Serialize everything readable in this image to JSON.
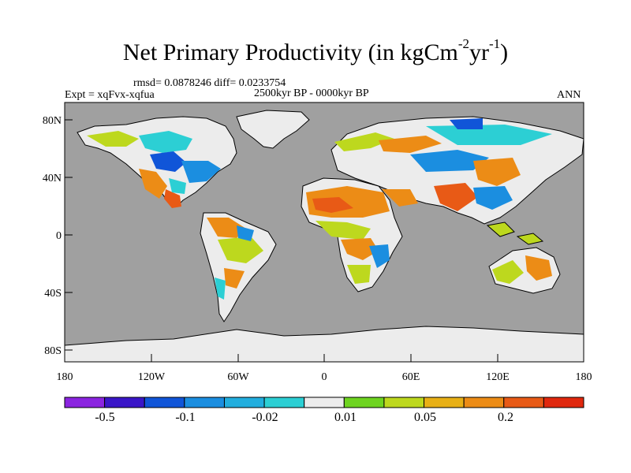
{
  "figure": {
    "title_main": "Net Primary Productivity (in kgCm",
    "title_sup1": "-2",
    "title_mid": "yr",
    "title_sup2": "-1",
    "title_end": ")",
    "stats": "rmsd= 0.0878246 diff= 0.0233754",
    "experiment": "Expt = xqFvx-xqfua",
    "period": "2500kyr BP - 0000kyr BP",
    "season": "ANN"
  },
  "axes": {
    "lat_ticks": [
      "80N",
      "40N",
      "0",
      "40S",
      "80S"
    ],
    "lon_ticks": [
      "180",
      "120W",
      "60W",
      "0",
      "60E",
      "120E",
      "180"
    ]
  },
  "colorbar": {
    "colors": [
      "#8b24e0",
      "#3a16c8",
      "#1055d8",
      "#1b8ee0",
      "#22aede",
      "#2ccfd4",
      "#ececec",
      "#6ed420",
      "#bdd81e",
      "#e8b016",
      "#ec8c16",
      "#e85a16",
      "#e0280e"
    ],
    "labels": [
      "-0.5",
      "-0.1",
      "-0.02",
      "0.01",
      "0.05",
      "0.2"
    ]
  },
  "map": {
    "ocean_color": "#a0a0a0",
    "ice_color": "#ececec"
  }
}
